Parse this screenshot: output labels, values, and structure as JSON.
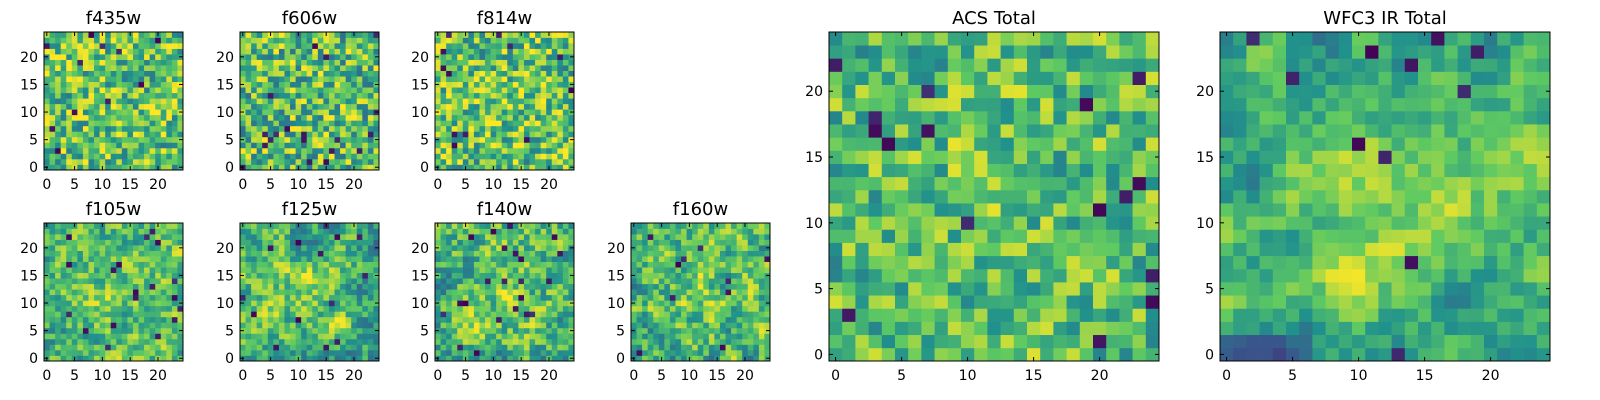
{
  "figure": {
    "colormap": "viridis",
    "colormap_stops": [
      "#440154",
      "#3b528b",
      "#21918c",
      "#5ec962",
      "#fde725"
    ]
  },
  "chart_data": [
    {
      "type": "heatmap",
      "title": "f435w",
      "grid_size": 25,
      "xticks": [
        "0",
        "5",
        "10",
        "15",
        "20"
      ],
      "yticks": [
        "0",
        "5",
        "10",
        "15",
        "20"
      ],
      "xlim": [
        -0.5,
        24.5
      ],
      "ylim": [
        -0.5,
        24.5
      ],
      "value_range": [
        0,
        1
      ],
      "mean_level": 0.72,
      "noise": 0.3,
      "blob": 0.03,
      "seed": 11
    },
    {
      "type": "heatmap",
      "title": "f606w",
      "grid_size": 25,
      "xticks": [
        "0",
        "5",
        "10",
        "15",
        "20"
      ],
      "yticks": [
        "0",
        "5",
        "10",
        "15",
        "20"
      ],
      "xlim": [
        -0.5,
        24.5
      ],
      "ylim": [
        -0.5,
        24.5
      ],
      "value_range": [
        0,
        1
      ],
      "mean_level": 0.7,
      "noise": 0.32,
      "blob": 0.04,
      "seed": 23
    },
    {
      "type": "heatmap",
      "title": "f814w",
      "grid_size": 25,
      "xticks": [
        "0",
        "5",
        "10",
        "15",
        "20"
      ],
      "yticks": [
        "0",
        "5",
        "10",
        "15",
        "20"
      ],
      "xlim": [
        -0.5,
        24.5
      ],
      "ylim": [
        -0.5,
        24.5
      ],
      "value_range": [
        0,
        1
      ],
      "mean_level": 0.73,
      "noise": 0.3,
      "blob": 0.05,
      "seed": 37
    },
    {
      "type": "heatmap",
      "title": "f105w",
      "grid_size": 25,
      "xticks": [
        "0",
        "5",
        "10",
        "15",
        "20"
      ],
      "yticks": [
        "0",
        "5",
        "10",
        "15",
        "20"
      ],
      "xlim": [
        -0.5,
        24.5
      ],
      "ylim": [
        -0.5,
        24.5
      ],
      "value_range": [
        0,
        1
      ],
      "mean_level": 0.7,
      "noise": 0.18,
      "blob": 0.18,
      "seed": 41
    },
    {
      "type": "heatmap",
      "title": "f125w",
      "grid_size": 25,
      "xticks": [
        "0",
        "5",
        "10",
        "15",
        "20"
      ],
      "yticks": [
        "0",
        "5",
        "10",
        "15",
        "20"
      ],
      "xlim": [
        -0.5,
        24.5
      ],
      "ylim": [
        -0.5,
        24.5
      ],
      "value_range": [
        0,
        1
      ],
      "mean_level": 0.68,
      "noise": 0.18,
      "blob": 0.2,
      "seed": 53
    },
    {
      "type": "heatmap",
      "title": "f140w",
      "grid_size": 25,
      "xticks": [
        "0",
        "5",
        "10",
        "15",
        "20"
      ],
      "yticks": [
        "0",
        "5",
        "10",
        "15",
        "20"
      ],
      "xlim": [
        -0.5,
        24.5
      ],
      "ylim": [
        -0.5,
        24.5
      ],
      "value_range": [
        0,
        1
      ],
      "mean_level": 0.7,
      "noise": 0.2,
      "blob": 0.18,
      "seed": 67
    },
    {
      "type": "heatmap",
      "title": "f160w",
      "grid_size": 25,
      "xticks": [
        "0",
        "5",
        "10",
        "15",
        "20"
      ],
      "yticks": [
        "0",
        "5",
        "10",
        "15",
        "20"
      ],
      "xlim": [
        -0.5,
        24.5
      ],
      "ylim": [
        -0.5,
        24.5
      ],
      "value_range": [
        0,
        1
      ],
      "mean_level": 0.7,
      "noise": 0.2,
      "blob": 0.18,
      "seed": 79
    },
    {
      "type": "heatmap",
      "title": "ACS Total",
      "grid_size": 25,
      "xticks": [
        "0",
        "5",
        "10",
        "15",
        "20"
      ],
      "yticks": [
        "0",
        "5",
        "10",
        "15",
        "20"
      ],
      "xlim": [
        -0.5,
        24.5
      ],
      "ylim": [
        -0.5,
        24.5
      ],
      "value_range": [
        0,
        1
      ],
      "mean_level": 0.7,
      "noise": 0.24,
      "blob": 0.06,
      "seed": 89
    },
    {
      "type": "heatmap",
      "title": "WFC3 IR Total",
      "grid_size": 25,
      "xticks": [
        "0",
        "5",
        "10",
        "15",
        "20"
      ],
      "yticks": [
        "0",
        "5",
        "10",
        "15",
        "20"
      ],
      "xlim": [
        -0.5,
        24.5
      ],
      "ylim": [
        -0.5,
        24.5
      ],
      "value_range": [
        0,
        1
      ],
      "mean_level": 0.66,
      "noise": 0.1,
      "blob": 0.26,
      "seed": 97
    }
  ]
}
